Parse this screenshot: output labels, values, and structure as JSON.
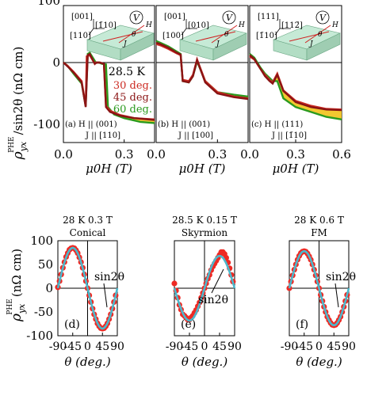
{
  "colors": {
    "c30": "#cc2a22",
    "c45": "#8a1414",
    "c60": "#2a9a1e",
    "fill": "#f2c21a",
    "data": "#ee2a24",
    "fit": "#4cb8cc",
    "device_top": "#c6ead6",
    "device_front": "#b2ddc4",
    "device_side": "#9fcdb2"
  },
  "top_row": {
    "ylabel_main": "ρ",
    "ylabel_sub": "yx",
    "ylabel_sup": "PHE",
    "ylabel_rest": "/sin2θ (nΩ cm)",
    "xlabel": "μ0H (T)",
    "ytick_labels": [
      "100",
      "0",
      "-100"
    ],
    "legend": {
      "temp": "28.5 K",
      "entries": [
        {
          "label": "30 deg.",
          "color": "#cc2a22"
        },
        {
          "label": "45 deg.",
          "color": "#8a1414"
        },
        {
          "label": "60 deg.",
          "color": "#2a9a1e"
        }
      ]
    },
    "panels": [
      {
        "caption1": "(a) H || (001)",
        "caption2": "J || [110]",
        "axes_labels": [
          "[001]",
          "[1̄10]",
          "[110]"
        ],
        "field_labels": [
          "H",
          "θ",
          "J"
        ],
        "voltmeter": "V",
        "xticks": [
          "0.0",
          "0.3"
        ]
      },
      {
        "caption1": "(b) H || (001)",
        "caption2": "J || [100]",
        "axes_labels": [
          "[001]",
          "[010]",
          "[100]"
        ],
        "field_labels": [
          "H",
          "θ",
          "J"
        ],
        "voltmeter": "V",
        "xticks": [
          "0.0",
          "0.3"
        ]
      },
      {
        "caption1": "(c) H || (111)",
        "caption2": "J || [1̄10]",
        "axes_labels": [
          "[111]",
          "[112̄]",
          "[1̄10]"
        ],
        "field_labels": [
          "H",
          "θ",
          "J"
        ],
        "voltmeter": "V",
        "xticks": [
          "0.0",
          "0.3",
          "0.6"
        ]
      }
    ]
  },
  "bottom_row": {
    "ylabel_main": "ρ",
    "ylabel_sub": "yx",
    "ylabel_sup": "PHE",
    "ylabel_rest": "(nΩ cm)",
    "xlabel": "θ (deg.)",
    "ytick_labels": [
      "100",
      "50",
      "0",
      "-50",
      "-100"
    ],
    "xtick_labels": [
      "-90",
      "-45",
      "0",
      "45",
      "90"
    ],
    "panels": [
      {
        "title1": "28 K 0.3 T",
        "title2": "Conical",
        "letter": "(d)",
        "fit_label": "sin2θ"
      },
      {
        "title1": "28.5 K  0.15 T",
        "title2": "Skyrmion",
        "letter": "(e)",
        "fit_label": "sin2θ"
      },
      {
        "title1": "28 K 0.6 T",
        "title2": "FM",
        "letter": "(f)",
        "fit_label": "sin2θ"
      }
    ]
  },
  "chart_data": [
    {
      "type": "line",
      "panel": "a",
      "xlabel": "μ0H (T)",
      "ylabel": "ρyx PHE/sin2θ (nΩ cm)",
      "xlim": [
        0,
        0.45
      ],
      "ylim": [
        -130,
        100
      ],
      "series": [
        {
          "name": "30 deg.",
          "x": [
            0,
            0.02,
            0.05,
            0.09,
            0.11,
            0.115,
            0.13,
            0.155,
            0.16,
            0.18,
            0.2,
            0.21,
            0.23,
            0.28,
            0.35,
            0.45
          ],
          "y": [
            0,
            -5,
            -15,
            -30,
            -70,
            10,
            12,
            -2,
            0,
            0,
            -2,
            -70,
            -78,
            -85,
            -90,
            -92
          ]
        },
        {
          "name": "45 deg.",
          "x": [
            0,
            0.02,
            0.05,
            0.09,
            0.11,
            0.12,
            0.13,
            0.155,
            0.165,
            0.18,
            0.2,
            0.21,
            0.23,
            0.28,
            0.35,
            0.45
          ],
          "y": [
            0,
            -6,
            -16,
            -32,
            -72,
            12,
            14,
            -2,
            0,
            0,
            -2,
            -72,
            -80,
            -86,
            -90,
            -93
          ]
        },
        {
          "name": "60 deg.",
          "x": [
            0,
            0.02,
            0.05,
            0.09,
            0.11,
            0.12,
            0.13,
            0.16,
            0.175,
            0.19,
            0.21,
            0.22,
            0.25,
            0.3,
            0.38,
            0.45
          ],
          "y": [
            0,
            -5,
            -18,
            -34,
            -70,
            14,
            16,
            0,
            0,
            -2,
            -3,
            -72,
            -84,
            -90,
            -96,
            -98
          ]
        }
      ]
    },
    {
      "type": "line",
      "panel": "b",
      "xlabel": "μ0H (T)",
      "xlim": [
        0,
        0.45
      ],
      "ylim": [
        -130,
        100
      ],
      "series": [
        {
          "name": "30 deg.",
          "x": [
            0,
            0.02,
            0.06,
            0.1,
            0.12,
            0.13,
            0.16,
            0.18,
            0.2,
            0.24,
            0.3,
            0.38,
            0.45
          ],
          "y": [
            30,
            28,
            22,
            15,
            12,
            -28,
            -30,
            -20,
            5,
            -30,
            -48,
            -55,
            -58
          ]
        },
        {
          "name": "45 deg.",
          "x": [
            0,
            0.02,
            0.06,
            0.1,
            0.12,
            0.13,
            0.16,
            0.18,
            0.2,
            0.24,
            0.3,
            0.38,
            0.45
          ],
          "y": [
            32,
            30,
            24,
            16,
            13,
            -30,
            -32,
            -22,
            4,
            -32,
            -50,
            -56,
            -59
          ]
        },
        {
          "name": "60 deg.",
          "x": [
            0,
            0.02,
            0.06,
            0.1,
            0.12,
            0.13,
            0.16,
            0.18,
            0.2,
            0.24,
            0.3,
            0.38,
            0.45
          ],
          "y": [
            35,
            32,
            26,
            18,
            14,
            -30,
            -32,
            -22,
            2,
            -30,
            -48,
            -52,
            -55
          ]
        }
      ]
    },
    {
      "type": "line",
      "panel": "c",
      "xlabel": "μ0H (T)",
      "xlim": [
        0,
        0.6
      ],
      "ylim": [
        -130,
        100
      ],
      "series": [
        {
          "name": "30 deg.",
          "x": [
            0,
            0.03,
            0.07,
            0.1,
            0.13,
            0.15,
            0.18,
            0.22,
            0.3,
            0.4,
            0.5,
            0.6
          ],
          "y": [
            10,
            5,
            -10,
            -20,
            -28,
            -32,
            -18,
            -45,
            -62,
            -70,
            -75,
            -76
          ]
        },
        {
          "name": "45 deg.",
          "x": [
            0,
            0.03,
            0.07,
            0.1,
            0.13,
            0.15,
            0.18,
            0.22,
            0.3,
            0.4,
            0.5,
            0.6
          ],
          "y": [
            12,
            6,
            -10,
            -22,
            -30,
            -34,
            -20,
            -46,
            -64,
            -72,
            -76,
            -77
          ]
        },
        {
          "name": "60 deg.",
          "x": [
            0,
            0.03,
            0.07,
            0.1,
            0.13,
            0.15,
            0.18,
            0.22,
            0.3,
            0.4,
            0.5,
            0.6
          ],
          "y": [
            14,
            8,
            -8,
            -18,
            -25,
            -30,
            -30,
            -58,
            -72,
            -80,
            -88,
            -92
          ]
        }
      ]
    },
    {
      "type": "scatter",
      "panel": "d",
      "xlabel": "θ (deg.)",
      "ylabel": "ρyx PHE (nΩ cm)",
      "xlim": [
        -90,
        90
      ],
      "ylim": [
        -100,
        100
      ],
      "amplitude": 85,
      "fit": "sin2θ",
      "x": [
        -90,
        -85,
        -80,
        -75,
        -70,
        -65,
        -60,
        -55,
        -50,
        -45,
        -40,
        -35,
        -30,
        -25,
        -20,
        -15,
        -10,
        -5,
        0,
        5,
        10,
        15,
        20,
        25,
        30,
        35,
        40,
        45,
        50,
        55,
        60,
        65,
        70,
        75,
        80,
        85
      ],
      "y": [
        2,
        15,
        29,
        43,
        55,
        66,
        74,
        81,
        84,
        85,
        84,
        80,
        74,
        65,
        55,
        43,
        29,
        15,
        0,
        -15,
        -29,
        -43,
        -55,
        -65,
        -74,
        -80,
        -84,
        -85,
        -84,
        -80,
        -74,
        -65,
        -55,
        -43,
        -29,
        -15
      ]
    },
    {
      "type": "scatter",
      "panel": "e",
      "xlabel": "θ (deg.)",
      "xlim": [
        -90,
        90
      ],
      "ylim": [
        -100,
        100
      ],
      "amplitude": 68,
      "fit": "sin2θ",
      "x": [
        -90,
        -85,
        -80,
        -75,
        -70,
        -65,
        -60,
        -55,
        -50,
        -45,
        -40,
        -35,
        -30,
        -25,
        -20,
        -15,
        -10,
        -5,
        0,
        5,
        10,
        15,
        20,
        25,
        30,
        35,
        40,
        45,
        50,
        55,
        60,
        65,
        70,
        75,
        80,
        85
      ],
      "y": [
        10,
        -5,
        -20,
        -35,
        -45,
        -55,
        -58,
        -62,
        -66,
        -66,
        -62,
        -58,
        -52,
        -46,
        -38,
        -30,
        -20,
        -10,
        0,
        10,
        20,
        28,
        38,
        46,
        52,
        58,
        64,
        70,
        76,
        76,
        72,
        64,
        54,
        42,
        28,
        14
      ]
    },
    {
      "type": "scatter",
      "panel": "f",
      "xlabel": "θ (deg.)",
      "xlim": [
        -90,
        90
      ],
      "ylim": [
        -100,
        100
      ],
      "amplitude": 78,
      "fit": "sin2θ",
      "x": [
        -90,
        -85,
        -80,
        -75,
        -70,
        -65,
        -60,
        -55,
        -50,
        -45,
        -40,
        -35,
        -30,
        -25,
        -20,
        -15,
        -10,
        -5,
        0,
        5,
        10,
        15,
        20,
        25,
        30,
        35,
        40,
        45,
        50,
        55,
        60,
        65,
        70,
        75,
        80,
        85
      ],
      "y": [
        0,
        14,
        27,
        39,
        50,
        60,
        68,
        74,
        77,
        78,
        77,
        73,
        67,
        60,
        50,
        39,
        27,
        14,
        0,
        -14,
        -27,
        -39,
        -50,
        -60,
        -67,
        -73,
        -77,
        -78,
        -77,
        -73,
        -67,
        -60,
        -50,
        -39,
        -27,
        -14
      ]
    }
  ]
}
